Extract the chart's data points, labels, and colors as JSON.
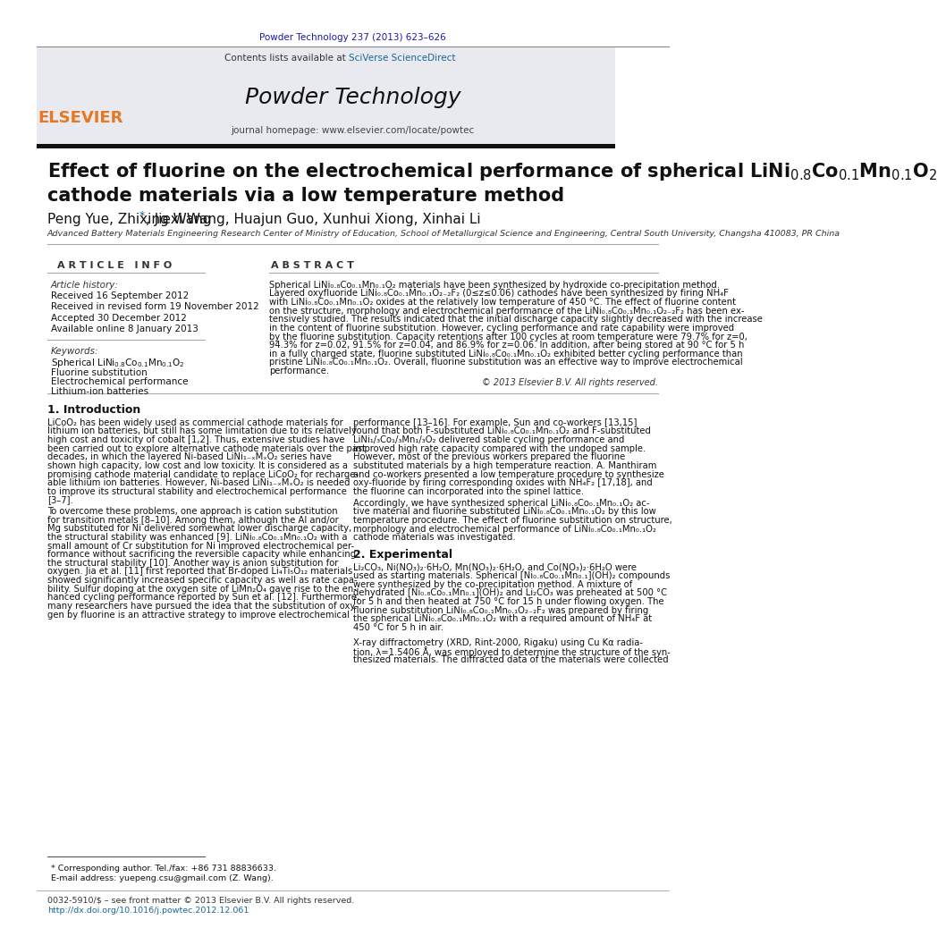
{
  "journal_ref": "Powder Technology 237 (2013) 623–626",
  "journal_ref_color": "#1a1aaa",
  "header_bg": "#e8eaf0",
  "contents_text": "Contents lists available at ",
  "sciverse_text": "SciVerse ScienceDirect",
  "sciverse_color": "#1a6699",
  "journal_name": "Powder Technology",
  "journal_homepage": "journal homepage: www.elsevier.com/locate/powtec",
  "elsevier_color": "#e87722",
  "title_line2": "cathode materials via a low temperature method",
  "authors": "Peng Yue, Zhixing Wang",
  "authors2": ", Jiexi Wang, Huajun Guo, Xunhui Xiong, Xinhai Li",
  "affiliation": "Advanced Battery Materials Engineering Research Center of Ministry of Education, School of Metallurgical Science and Engineering, Central South University, Changsha 410083, PR China",
  "article_info_header": "A R T I C L E   I N F O",
  "abstract_header": "A B S T R A C T",
  "article_history": "Article history:",
  "received": "Received 16 September 2012",
  "revised": "Received in revised form 19 November 2012",
  "accepted": "Accepted 30 December 2012",
  "online": "Available online 8 January 2013",
  "keywords_header": "Keywords:",
  "copyright": "© 2013 Elsevier B.V. All rights reserved.",
  "intro_header": "1. Introduction",
  "section2_header": "2. Experimental",
  "footnote1": "* Corresponding author. Tel./fax: +86 731 88836633.",
  "footnote2": "E-mail address: yuepeng.csu@gmail.com (Z. Wang).",
  "footer1": "0032-5910/$ – see front matter © 2013 Elsevier B.V. All rights reserved.",
  "footer2": "http://dx.doi.org/10.1016/j.powtec.2012.12.061",
  "footer2_color": "#1a6699",
  "bg_color": "#ffffff",
  "text_color": "#000000"
}
